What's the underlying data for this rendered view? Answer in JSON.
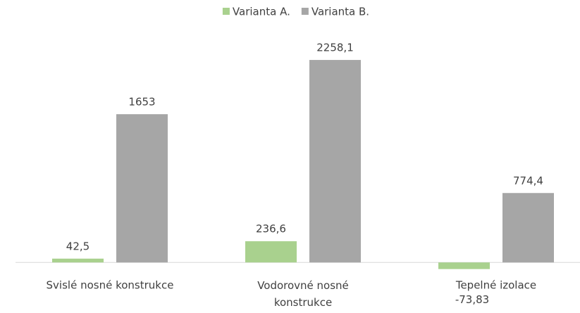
{
  "chart_data": {
    "type": "bar",
    "categories": [
      "Svislé nosné konstrukce",
      "Vodorovné nosné konstrukce",
      "Tepelné izolace"
    ],
    "series": [
      {
        "name": "Varianta A.",
        "color": "#a9d18e",
        "values": [
          42.5,
          236.6,
          -73.83
        ],
        "value_labels": [
          "42,5",
          "236,6",
          "-73,83"
        ]
      },
      {
        "name": "Varianta B.",
        "color": "#a6a6a6",
        "values": [
          1653,
          2258.1,
          774.4
        ],
        "value_labels": [
          "1653",
          "2258,1",
          "774,4"
        ]
      }
    ],
    "ylim": [
      -100,
      2400
    ],
    "legend": "top"
  }
}
